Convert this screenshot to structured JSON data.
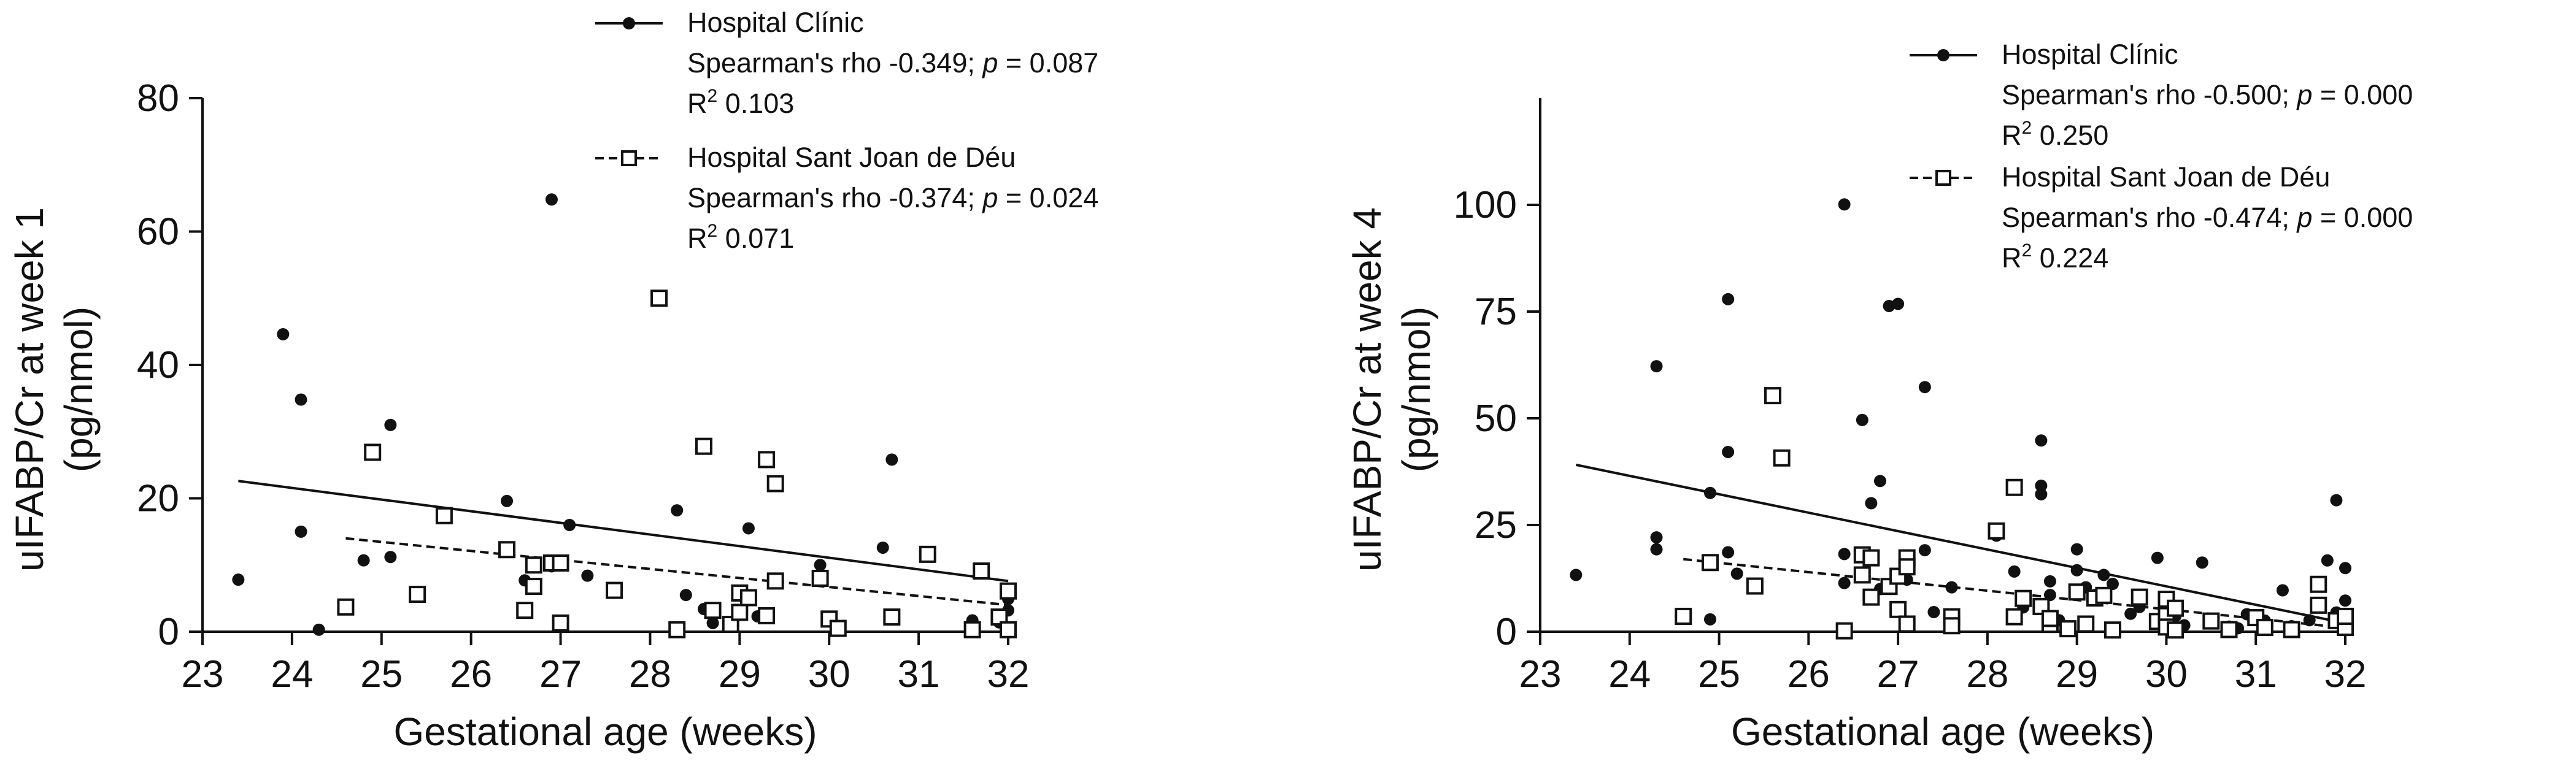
{
  "chart_data": [
    {
      "type": "scatter",
      "xlabel": "Gestational age (weeks)",
      "ylabel_line1": "uIFABP/Cr at week 1",
      "ylabel_line2": "(pg/nmol)",
      "xlim": [
        23,
        32
      ],
      "ylim": [
        0,
        80
      ],
      "xticks": [
        "23",
        "24",
        "25",
        "26",
        "27",
        "28",
        "29",
        "30",
        "31",
        "32"
      ],
      "yticks": [
        "0",
        "20",
        "40",
        "60",
        "80"
      ],
      "ytick_values": [
        0,
        20,
        40,
        60,
        80
      ],
      "series": [
        {
          "name": "Hospital Clínic",
          "line1": "Spearman's rho -0.349; ",
          "p_label": "p",
          "p_value": " = 0.087",
          "r2_label": "R",
          "r2_exp": "2",
          "r2_value": " 0.103",
          "marker": "circle",
          "line": "solid",
          "fit": [
            [
              23.4,
              22.6
            ],
            [
              32.0,
              7.6
            ]
          ],
          "points": [
            [
              23.4,
              7.8
            ],
            [
              23.9,
              44.6
            ],
            [
              24.1,
              34.8
            ],
            [
              24.1,
              15
            ],
            [
              24.3,
              0.3
            ],
            [
              24.8,
              10.7
            ],
            [
              25.1,
              31
            ],
            [
              25.1,
              11.2
            ],
            [
              26.4,
              19.6
            ],
            [
              26.6,
              7.7
            ],
            [
              26.9,
              64.8
            ],
            [
              26.9,
              9.8
            ],
            [
              27.1,
              16
            ],
            [
              27.3,
              8.4
            ],
            [
              28.3,
              18.2
            ],
            [
              28.4,
              5.5
            ],
            [
              28.6,
              3.4
            ],
            [
              28.7,
              1.3
            ],
            [
              28.9,
              1.3
            ],
            [
              29.1,
              15.5
            ],
            [
              29.2,
              2.3
            ],
            [
              29.9,
              10
            ],
            [
              30.6,
              12.6
            ],
            [
              30.7,
              25.8
            ],
            [
              31.6,
              1.7
            ],
            [
              31.9,
              1.4
            ],
            [
              32.0,
              3.2
            ],
            [
              32.0,
              4.9
            ]
          ]
        },
        {
          "name": "Hospital Sant Joan de Déu",
          "line1": "Spearman's rho -0.374; ",
          "p_label": "p",
          "p_value": " = 0.024",
          "r2_label": "R",
          "r2_exp": "2",
          "r2_value": " 0.071",
          "marker": "square",
          "line": "dashed",
          "fit": [
            [
              24.6,
              14.0
            ],
            [
              32.0,
              4.0
            ]
          ],
          "points": [
            [
              24.6,
              3.7
            ],
            [
              24.9,
              26.9
            ],
            [
              25.4,
              5.6
            ],
            [
              25.7,
              17.4
            ],
            [
              26.4,
              12.3
            ],
            [
              26.6,
              3.2
            ],
            [
              26.7,
              6.8
            ],
            [
              26.7,
              10
            ],
            [
              26.9,
              10.3
            ],
            [
              27.0,
              10.3
            ],
            [
              27.0,
              1.3
            ],
            [
              27.6,
              6.2
            ],
            [
              28.1,
              50.0
            ],
            [
              28.3,
              0.3
            ],
            [
              28.6,
              27.8
            ],
            [
              28.7,
              3.2
            ],
            [
              28.9,
              1.1
            ],
            [
              29.0,
              2.9
            ],
            [
              29.0,
              5.8
            ],
            [
              29.1,
              5.1
            ],
            [
              29.3,
              2.4
            ],
            [
              29.3,
              25.8
            ],
            [
              29.4,
              22.2
            ],
            [
              29.4,
              7.6
            ],
            [
              29.9,
              8
            ],
            [
              30.0,
              1.9
            ],
            [
              30.1,
              0.5
            ],
            [
              30.7,
              2.2
            ],
            [
              31.1,
              11.6
            ],
            [
              31.6,
              0.3
            ],
            [
              31.7,
              9.1
            ],
            [
              31.9,
              2.2
            ],
            [
              32.0,
              0.3
            ],
            [
              32.0,
              6.1
            ]
          ]
        }
      ]
    },
    {
      "type": "scatter",
      "xlabel": "Gestational age (weeks)",
      "ylabel_line1": "uIFABP/Cr at week 4",
      "ylabel_line2": "(pg/nmol)",
      "xlim": [
        23,
        32
      ],
      "ylim": [
        0,
        125
      ],
      "xticks": [
        "23",
        "24",
        "25",
        "26",
        "27",
        "28",
        "29",
        "30",
        "31",
        "32"
      ],
      "yticks": [
        "0",
        "25",
        "50",
        "75",
        "100"
      ],
      "ytick_values": [
        0,
        25,
        50,
        75,
        100
      ],
      "series": [
        {
          "name": "Hospital Clínic",
          "line1": "Spearman's rho -0.500; ",
          "p_label": "p",
          "p_value": " = 0.000",
          "r2_label": "R",
          "r2_exp": "2",
          "r2_value": " 0.250",
          "marker": "circle",
          "line": "solid",
          "fit": [
            [
              23.4,
              39.1
            ],
            [
              32.0,
              2.0
            ]
          ],
          "points": [
            [
              23.4,
              13.3
            ],
            [
              24.3,
              62.2
            ],
            [
              24.3,
              22.1
            ],
            [
              24.3,
              19.3
            ],
            [
              24.9,
              32.5
            ],
            [
              24.9,
              2.9
            ],
            [
              25.1,
              77.9
            ],
            [
              25.1,
              42.1
            ],
            [
              25.1,
              18.6
            ],
            [
              25.2,
              13.6
            ],
            [
              26.4,
              100.1
            ],
            [
              26.4,
              18.2
            ],
            [
              26.4,
              11.4
            ],
            [
              26.6,
              49.6
            ],
            [
              26.7,
              30.1
            ],
            [
              26.8,
              35.3
            ],
            [
              26.8,
              10
            ],
            [
              26.9,
              76.3
            ],
            [
              27.0,
              76.8
            ],
            [
              27.1,
              12.2
            ],
            [
              27.3,
              57.3
            ],
            [
              27.3,
              19.1
            ],
            [
              27.4,
              4.6
            ],
            [
              27.6,
              10.4
            ],
            [
              28.1,
              22.5
            ],
            [
              28.3,
              14.1
            ],
            [
              28.4,
              5.7
            ],
            [
              28.6,
              44.8
            ],
            [
              28.6,
              34.2
            ],
            [
              28.6,
              32.2
            ],
            [
              28.7,
              11.8
            ],
            [
              28.7,
              8.6
            ],
            [
              28.8,
              2.7
            ],
            [
              29.0,
              19.3
            ],
            [
              29.0,
              14.4
            ],
            [
              29.1,
              10.4
            ],
            [
              29.2,
              8.6
            ],
            [
              29.3,
              13.3
            ],
            [
              29.4,
              11.2
            ],
            [
              29.6,
              4.2
            ],
            [
              29.7,
              5.8
            ],
            [
              29.9,
              17.3
            ],
            [
              30.0,
              7.6
            ],
            [
              30.1,
              3.6
            ],
            [
              30.2,
              1.5
            ],
            [
              30.4,
              16.2
            ],
            [
              30.5,
              2.7
            ],
            [
              30.7,
              1.2
            ],
            [
              30.8,
              0.8
            ],
            [
              30.9,
              4.1
            ],
            [
              31.1,
              2.6
            ],
            [
              31.3,
              9.7
            ],
            [
              31.4,
              1.3
            ],
            [
              31.6,
              2.7
            ],
            [
              31.8,
              16.7
            ],
            [
              31.9,
              30.8
            ],
            [
              31.9,
              4.5
            ],
            [
              32.0,
              14.9
            ],
            [
              32.0,
              7.3
            ],
            [
              32.0,
              3.3
            ]
          ]
        },
        {
          "name": "Hospital Sant Joan de Déu",
          "line1": "Spearman's rho -0.474; ",
          "p_label": "p",
          "p_value": " = 0.000",
          "r2_label": "R",
          "r2_exp": "2",
          "r2_value": " 0.224",
          "marker": "square",
          "line": "dashed",
          "fit": [
            [
              24.6,
              17.0
            ],
            [
              32.0,
              0.9
            ]
          ],
          "points": [
            [
              24.6,
              3.6
            ],
            [
              24.9,
              16.2
            ],
            [
              25.4,
              10.7
            ],
            [
              25.6,
              55.3
            ],
            [
              25.7,
              40.7
            ],
            [
              26.4,
              0.2
            ],
            [
              26.6,
              18
            ],
            [
              26.6,
              13.3
            ],
            [
              26.7,
              8.1
            ],
            [
              26.7,
              17.3
            ],
            [
              26.9,
              10.6
            ],
            [
              27.0,
              13
            ],
            [
              27.0,
              5.2
            ],
            [
              27.1,
              17.3
            ],
            [
              27.1,
              15.2
            ],
            [
              27.1,
              1.8
            ],
            [
              27.6,
              3.5
            ],
            [
              27.6,
              1.4
            ],
            [
              28.1,
              23.6
            ],
            [
              28.3,
              33.8
            ],
            [
              28.3,
              3.5
            ],
            [
              28.4,
              7.8
            ],
            [
              28.6,
              5.9
            ],
            [
              28.7,
              1.7
            ],
            [
              28.7,
              3.1
            ],
            [
              28.9,
              0.7
            ],
            [
              29.0,
              9.3
            ],
            [
              29.1,
              1.8
            ],
            [
              29.2,
              7.9
            ],
            [
              29.3,
              8.5
            ],
            [
              29.4,
              0.4
            ],
            [
              29.7,
              8.1
            ],
            [
              29.9,
              2.4
            ],
            [
              30.0,
              7.6
            ],
            [
              30.0,
              3.8
            ],
            [
              30.0,
              1.1
            ],
            [
              30.1,
              5.5
            ],
            [
              30.1,
              0.4
            ],
            [
              30.5,
              2.5
            ],
            [
              30.7,
              0.5
            ],
            [
              31.0,
              3.3
            ],
            [
              31.1,
              1
            ],
            [
              31.4,
              0.5
            ],
            [
              31.7,
              11.1
            ],
            [
              31.7,
              6.2
            ],
            [
              31.9,
              2.6
            ],
            [
              32.0,
              1
            ],
            [
              32.0,
              3.6
            ]
          ]
        }
      ]
    }
  ]
}
